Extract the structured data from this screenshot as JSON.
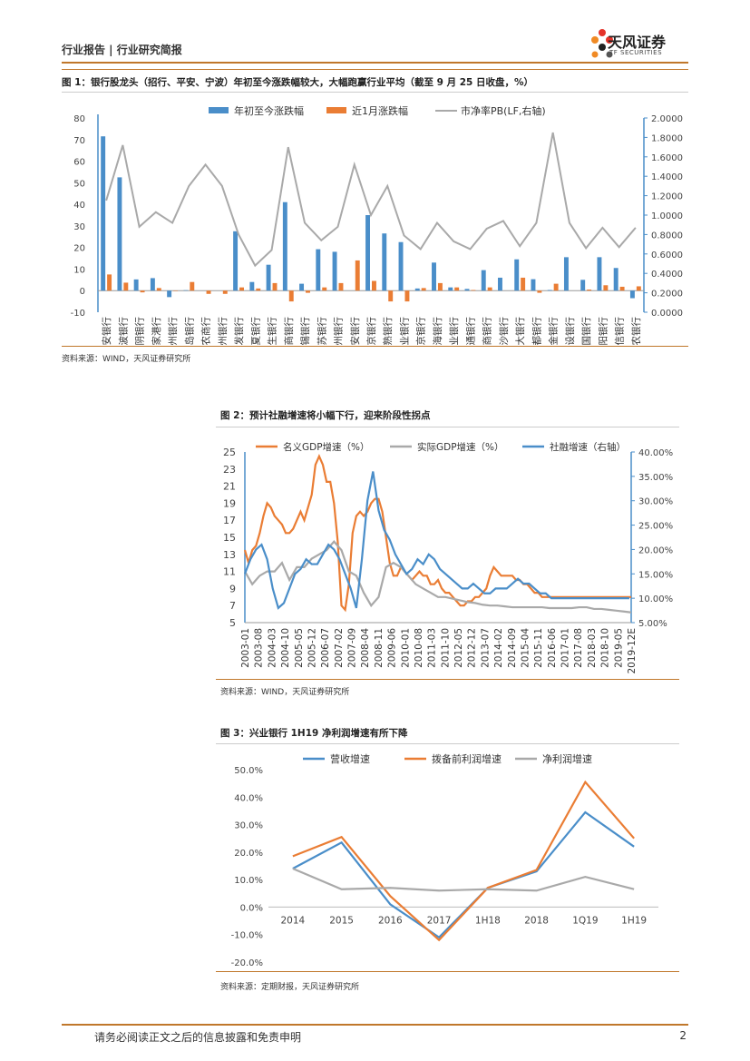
{
  "header": {
    "left": "行业报告 | 行业研究简报",
    "brand": "天风证券",
    "brand_en": "TF SECURITIES"
  },
  "footer": {
    "disclaimer": "请务必阅读正文之后的信息披露和免责申明",
    "page": "2"
  },
  "colors": {
    "blue": "#4a8ec9",
    "orange": "#ea7d34",
    "gray": "#a9a9a9",
    "accent": "#c0772b"
  },
  "figures": [
    {
      "title": "图 1：银行股龙头（招行、平安、宁波）年初至今涨跌幅较大，大幅跑赢行业平均（截至 9 月 25 日收盘，%）",
      "source": "资料来源：WIND，天风证券研究所"
    },
    {
      "title": "图 2：预计社融增速将小幅下行，迎来阶段性拐点",
      "source": "资料来源：WIND，天风证券研究所"
    },
    {
      "title": "图 3：兴业银行 1H19 净利润增速有所下降",
      "source": "资料来源：定期财报，天风证券研究所"
    }
  ],
  "chart_data": [
    {
      "type": "bar",
      "legend": [
        "年初至今涨跌幅",
        "近1月涨跌幅",
        "市净率PB(LF,右轴)"
      ],
      "categories": [
        "平安银行",
        "宁波银行",
        "江阴银行",
        "张家港行",
        "郑州银行",
        "青岛银行",
        "青农商行",
        "苏州银行",
        "浦发银行",
        "华夏银行",
        "民生银行",
        "招商银行",
        "无锡银行",
        "江苏银行",
        "杭州银行",
        "西安银行",
        "南京银行",
        "常熟银行",
        "兴业银行",
        "北京银行",
        "上海银行",
        "农业银行",
        "交通银行",
        "工商银行",
        "长沙银行",
        "光大银行",
        "成都银行",
        "紫金银行",
        "建设银行",
        "中国银行",
        "贵阳银行",
        "中信银行",
        "苏农银行"
      ],
      "series": [
        {
          "name": "年初至今涨跌幅",
          "axis": "left",
          "values": [
            71.5,
            52.5,
            5.2,
            5.8,
            -3.0,
            0.2,
            0.0,
            0.0,
            27.5,
            4.0,
            12.0,
            41.0,
            3.2,
            19.2,
            18.0,
            0.0,
            35.0,
            26.5,
            22.5,
            1.0,
            13.0,
            1.5,
            0.8,
            9.5,
            6.0,
            14.5,
            5.3,
            0.3,
            15.5,
            5.0,
            15.5,
            10.5,
            -3.5
          ]
        },
        {
          "name": "近1月涨跌幅",
          "axis": "left",
          "values": [
            7.5,
            3.7,
            -0.8,
            1.2,
            -0.2,
            4.0,
            -1.5,
            -1.5,
            1.5,
            1.0,
            3.5,
            -5.0,
            -1.0,
            1.5,
            3.5,
            14.0,
            4.5,
            -5.0,
            -5.0,
            1.2,
            3.5,
            1.5,
            0.3,
            1.5,
            0.0,
            6.0,
            -1.0,
            3.2,
            0.0,
            0.5,
            2.5,
            1.8,
            2.0
          ]
        },
        {
          "name": "市净率PB(LF,右轴)",
          "axis": "right",
          "values": [
            1.15,
            1.72,
            0.88,
            1.03,
            0.92,
            1.3,
            1.52,
            1.3,
            0.8,
            0.48,
            0.64,
            1.7,
            0.92,
            0.74,
            0.88,
            1.52,
            1.0,
            1.3,
            0.79,
            0.65,
            0.92,
            0.73,
            0.65,
            0.86,
            0.94,
            0.68,
            0.92,
            1.85,
            0.92,
            0.66,
            0.87,
            0.67,
            0.87
          ]
        }
      ],
      "ylim": [
        -10,
        80
      ],
      "ylim_right": [
        0,
        2.0
      ],
      "yticks": [
        "80",
        "70",
        "60",
        "50",
        "40",
        "30",
        "20",
        "10",
        "0",
        "-10"
      ],
      "yticks_right": [
        "2.0000",
        "1.8000",
        "1.6000",
        "1.4000",
        "1.2000",
        "1.0000",
        "0.8000",
        "0.6000",
        "0.4000",
        "0.2000",
        "0.0000"
      ]
    },
    {
      "type": "line",
      "legend": [
        "名义GDP增速（%）",
        "实际GDP增速（%）",
        "社融增速（右轴）"
      ],
      "xticks": [
        "2003-01",
        "2003-08",
        "2004-03",
        "2004-10",
        "2005-05",
        "2005-12",
        "2006-07",
        "2007-02",
        "2007-09",
        "2008-04",
        "2008-11",
        "2009-06",
        "2010-01",
        "2010-08",
        "2011-03",
        "2011-10",
        "2012-05",
        "2012-12",
        "2013-07",
        "2014-02",
        "2014-09",
        "2015-04",
        "2015-11",
        "2016-06",
        "2017-01",
        "2017-08",
        "2018-03",
        "2018-10",
        "2019-05",
        "2019-12E"
      ],
      "ylim": [
        5,
        25
      ],
      "ylim_right": [
        0.05,
        0.4
      ],
      "yticks": [
        "25",
        "23",
        "21",
        "19",
        "17",
        "15",
        "13",
        "11",
        "9",
        "7",
        "5"
      ],
      "yticks_right": [
        "40.00%",
        "35.00%",
        "30.00%",
        "25.00%",
        "20.00%",
        "15.00%",
        "10.00%",
        "5.00%"
      ],
      "series": [
        {
          "name": "名义GDP增速（%）",
          "axis": "left",
          "x": [
            0,
            2,
            4,
            6,
            8,
            10,
            12,
            14,
            16,
            18,
            20,
            22,
            24,
            26,
            28,
            30,
            32,
            34,
            36,
            38,
            40,
            42,
            44,
            46,
            48,
            50,
            52,
            54,
            56,
            58,
            60,
            62,
            64,
            66,
            68,
            70,
            72,
            74,
            76,
            78,
            80,
            82,
            84,
            86,
            88,
            90,
            92,
            94,
            96,
            98,
            100,
            102,
            104,
            106,
            108,
            110,
            112,
            114,
            116,
            118,
            120,
            122,
            124,
            126,
            128,
            130,
            132,
            134,
            136,
            138,
            140,
            142,
            144,
            146,
            148,
            150,
            152,
            154,
            156,
            158,
            160,
            162,
            164,
            166,
            168,
            170,
            172,
            174,
            176,
            178,
            180,
            182,
            184,
            186,
            188,
            190,
            192,
            194,
            196,
            198,
            200,
            202,
            204,
            206,
            208
          ],
          "values": [
            13.5,
            12.0,
            13.5,
            14.0,
            15.5,
            17.5,
            19.0,
            18.5,
            17.5,
            17.0,
            16.5,
            15.5,
            15.5,
            16.0,
            17.0,
            18.0,
            17.0,
            18.5,
            20.0,
            23.5,
            24.5,
            23.5,
            21.5,
            21.5,
            19.0,
            14.5,
            7.0,
            6.5,
            9.5,
            15.5,
            17.5,
            18.0,
            17.5,
            18.0,
            19.0,
            19.5,
            19.5,
            18.0,
            15.0,
            12.0,
            10.5,
            10.5,
            11.5,
            11.0,
            10.5,
            10.0,
            10.5,
            11.0,
            10.5,
            10.5,
            9.5,
            9.5,
            10.0,
            9.0,
            8.5,
            8.5,
            8.0,
            7.5,
            7.0,
            7.0,
            7.5,
            7.5,
            8.0,
            8.0,
            8.5,
            9.0,
            10.5,
            11.5,
            11.0,
            10.5,
            10.5,
            10.5,
            10.5,
            10.0,
            10.0,
            9.5,
            9.5,
            9.0,
            8.5,
            8.5,
            8.0,
            8.0,
            8.0,
            8.0,
            8.0,
            8.0,
            8.0,
            8.0,
            8.0,
            8.0,
            8.0,
            8.0,
            8.0,
            8.0,
            8.0,
            8.0,
            8.0,
            8.0,
            8.0,
            8.0,
            8.0,
            8.0,
            8.0,
            8.0,
            8.0
          ]
        },
        {
          "name": "实际GDP增速（%）",
          "axis": "left",
          "x": [
            0,
            4,
            8,
            12,
            16,
            20,
            24,
            28,
            32,
            36,
            40,
            44,
            48,
            52,
            56,
            60,
            64,
            68,
            72,
            76,
            80,
            84,
            88,
            92,
            96,
            100,
            104,
            108,
            112,
            116,
            120,
            124,
            128,
            132,
            136,
            140,
            144,
            148,
            152,
            156,
            160,
            164,
            168,
            172,
            176,
            180,
            184,
            188,
            192,
            196,
            200,
            204,
            208
          ],
          "values": [
            11.0,
            9.5,
            10.5,
            11.0,
            11.0,
            12.0,
            10.0,
            11.5,
            11.5,
            12.5,
            13.0,
            13.5,
            14.5,
            13.5,
            11.0,
            10.5,
            8.5,
            7.0,
            8.0,
            11.5,
            12.0,
            11.5,
            10.5,
            9.5,
            9.0,
            8.5,
            8.0,
            8.0,
            7.8,
            7.6,
            7.4,
            7.3,
            7.1,
            7.0,
            7.0,
            6.9,
            6.8,
            6.8,
            6.8,
            6.8,
            6.8,
            6.7,
            6.7,
            6.7,
            6.7,
            6.8,
            6.8,
            6.6,
            6.6,
            6.5,
            6.4,
            6.3,
            6.2
          ]
        },
        {
          "name": "社融增速（右轴）",
          "axis": "right",
          "x": [
            0,
            3,
            6,
            9,
            12,
            15,
            18,
            21,
            24,
            27,
            30,
            33,
            36,
            39,
            42,
            45,
            48,
            51,
            54,
            57,
            60,
            63,
            66,
            69,
            72,
            75,
            78,
            81,
            84,
            87,
            90,
            93,
            96,
            99,
            102,
            105,
            108,
            111,
            114,
            117,
            120,
            123,
            126,
            129,
            132,
            135,
            138,
            141,
            144,
            147,
            150,
            153,
            156,
            159,
            162,
            165,
            168,
            171,
            174,
            177,
            180,
            183,
            186,
            189,
            192,
            195,
            198,
            201,
            204,
            207
          ],
          "values": [
            0.15,
            0.18,
            0.2,
            0.21,
            0.18,
            0.12,
            0.08,
            0.09,
            0.12,
            0.15,
            0.16,
            0.18,
            0.17,
            0.17,
            0.19,
            0.21,
            0.2,
            0.18,
            0.15,
            0.12,
            0.08,
            0.18,
            0.3,
            0.36,
            0.28,
            0.24,
            0.22,
            0.19,
            0.17,
            0.15,
            0.16,
            0.18,
            0.17,
            0.19,
            0.18,
            0.16,
            0.15,
            0.14,
            0.13,
            0.12,
            0.12,
            0.13,
            0.12,
            0.11,
            0.11,
            0.12,
            0.12,
            0.12,
            0.13,
            0.14,
            0.13,
            0.13,
            0.12,
            0.11,
            0.11,
            0.1,
            0.1,
            0.1,
            0.1,
            0.1,
            0.1,
            0.1,
            0.1,
            0.1,
            0.1,
            0.1,
            0.1,
            0.1,
            0.1,
            0.1
          ]
        }
      ]
    },
    {
      "type": "line",
      "legend": [
        "营收增速",
        "拨备前利润增速",
        "净利润增速"
      ],
      "categories": [
        "2014",
        "2015",
        "2016",
        "2017",
        "1H18",
        "2018",
        "1Q19",
        "1H19"
      ],
      "ylim": [
        -0.2,
        0.5
      ],
      "yticks": [
        "50.0%",
        "40.0%",
        "30.0%",
        "20.0%",
        "10.0%",
        "0.0%",
        "-10.0%",
        "-20.0%"
      ],
      "series": [
        {
          "name": "营收增速",
          "values": [
            0.14,
            0.235,
            0.01,
            -0.11,
            0.07,
            0.13,
            0.345,
            0.22
          ]
        },
        {
          "name": "拨备前利润增速",
          "values": [
            0.185,
            0.255,
            0.04,
            -0.12,
            0.07,
            0.135,
            0.455,
            0.25
          ]
        },
        {
          "name": "净利润增速",
          "values": [
            0.14,
            0.065,
            0.07,
            0.06,
            0.065,
            0.06,
            0.11,
            0.065
          ]
        }
      ]
    }
  ]
}
